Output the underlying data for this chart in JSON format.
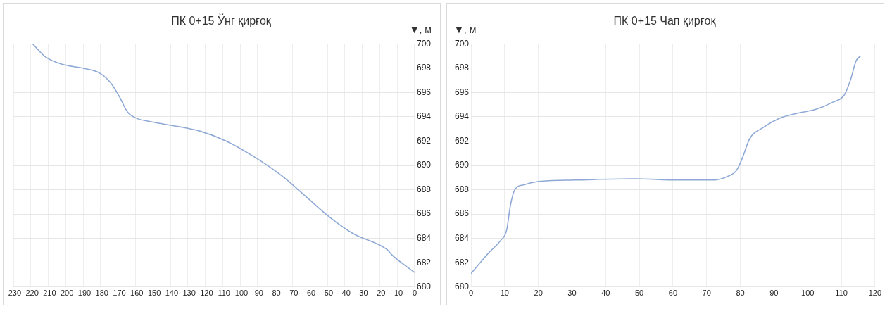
{
  "chart_data": [
    {
      "type": "line",
      "title": "ПК 0+15 Ўнг қирғоқ",
      "ylabel": "▼, м",
      "grid": true,
      "xlim": [
        -230,
        0
      ],
      "xticks": [
        -230,
        -220,
        -210,
        -200,
        -190,
        -180,
        -170,
        -160,
        -150,
        -140,
        -130,
        -120,
        -110,
        -100,
        -90,
        -80,
        -70,
        -60,
        -50,
        -40,
        -30,
        -20,
        -10,
        0
      ],
      "ylim": [
        680,
        700
      ],
      "yticks": [
        680,
        682,
        684,
        686,
        688,
        690,
        692,
        694,
        696,
        698,
        700
      ],
      "series": [
        {
          "color": "#8ea9d6",
          "x": [
            -219,
            -211.4,
            -201.7,
            -190.4,
            -180.7,
            -174.3,
            -169.4,
            -164.6,
            -159.7,
            -151.6,
            -135.5,
            -122.6,
            -108,
            -91.9,
            -75.7,
            -62.8,
            -48.3,
            -35.3,
            -16,
            -12.7,
            0
          ],
          "values": [
            700,
            698.9,
            698.3,
            698,
            697.6,
            696.8,
            695.7,
            694.4,
            693.9,
            693.6,
            693.2,
            692.8,
            692,
            690.7,
            689.1,
            687.5,
            685.7,
            684.4,
            683.1,
            682.6,
            681.2
          ]
        }
      ]
    },
    {
      "type": "line",
      "title": "ПК 0+15 Чап қирғоқ",
      "ylabel": "▼, м",
      "grid": true,
      "xlim": [
        0,
        120
      ],
      "xticks": [
        0,
        10,
        20,
        30,
        40,
        50,
        60,
        70,
        80,
        90,
        100,
        110,
        120
      ],
      "ylim": [
        680,
        700
      ],
      "yticks": [
        680,
        682,
        684,
        686,
        688,
        690,
        692,
        694,
        696,
        698,
        700
      ],
      "series": [
        {
          "color": "#8ea9d6",
          "x": [
            0,
            5.2,
            8.7,
            10.6,
            11.7,
            13,
            15.6,
            20.8,
            31.2,
            48.5,
            61.5,
            71.9,
            76.3,
            78.9,
            80.6,
            82.8,
            86.7,
            91.9,
            97.1,
            102.3,
            107.5,
            110.9,
            112.7,
            114.4,
            115.7
          ],
          "values": [
            681.1,
            682.8,
            683.8,
            684.7,
            686.7,
            688,
            688.4,
            688.7,
            688.8,
            688.9,
            688.8,
            688.8,
            689.1,
            689.6,
            690.6,
            692.2,
            693.1,
            693.9,
            694.3,
            694.6,
            695.2,
            695.8,
            697,
            698.6,
            699
          ]
        }
      ]
    }
  ]
}
